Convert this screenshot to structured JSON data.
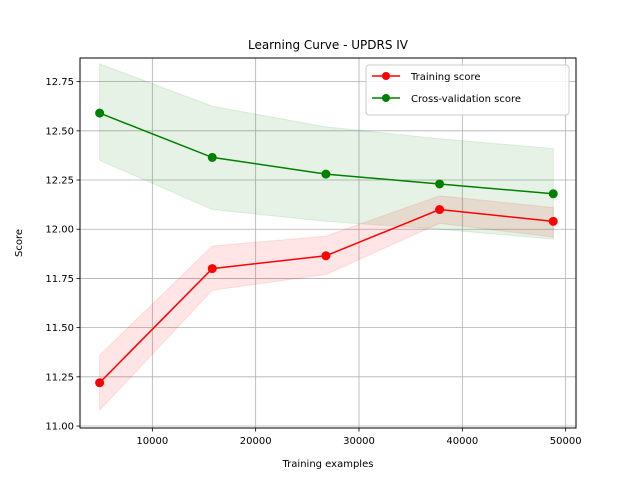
{
  "chart_data": {
    "type": "line",
    "title": "Learning Curve - UPDRS IV",
    "xlabel": "Training examples",
    "ylabel": "Score",
    "xlim": [
      3000,
      51000
    ],
    "ylim": [
      10.99,
      12.87
    ],
    "grid": true,
    "legend_position": "top-right",
    "x_ticks": [
      10000,
      20000,
      30000,
      40000,
      50000
    ],
    "x_tick_labels": [
      "10000",
      "20000",
      "30000",
      "40000",
      "50000"
    ],
    "y_ticks": [
      11.0,
      11.25,
      11.5,
      11.75,
      12.0,
      12.25,
      12.5,
      12.75
    ],
    "y_tick_labels": [
      "11.00",
      "11.25",
      "11.50",
      "11.75",
      "12.00",
      "12.25",
      "12.50",
      "12.75"
    ],
    "x": [
      4900,
      15800,
      26800,
      37800,
      48800
    ],
    "series": [
      {
        "name": "Training score",
        "color": "#ff0000",
        "band_color": "#ff0000",
        "values": [
          11.22,
          11.8,
          11.865,
          12.1,
          12.04
        ],
        "lower": [
          11.08,
          11.69,
          11.77,
          12.03,
          11.96
        ],
        "upper": [
          11.36,
          11.915,
          11.965,
          12.17,
          12.11
        ]
      },
      {
        "name": "Cross-validation score",
        "color": "#008000",
        "band_color": "#008000",
        "values": [
          12.59,
          12.365,
          12.28,
          12.23,
          12.18
        ],
        "lower": [
          12.35,
          12.1,
          12.04,
          12.0,
          11.95
        ],
        "upper": [
          12.84,
          12.625,
          12.52,
          12.46,
          12.41
        ]
      }
    ]
  }
}
